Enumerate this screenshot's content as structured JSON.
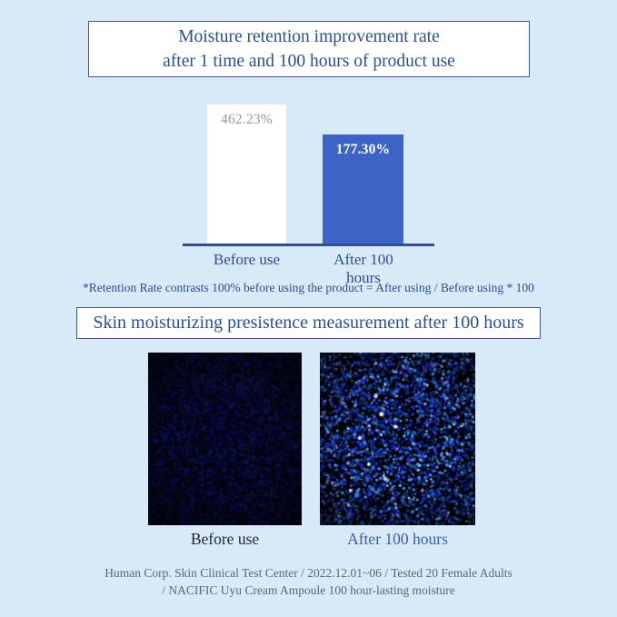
{
  "colors": {
    "background": "#d8e9f8",
    "accent_navy": "#2d4e8f",
    "box_border": "#44598f",
    "bar_before_fill": "#ffffff",
    "bar_after_fill": "#3d63c6",
    "bar_before_value_text": "#9b9b9b",
    "bar_after_value_text": "#ffffff",
    "after_label_blue": "#3a5fad",
    "footer_gray": "#5d6774"
  },
  "header": {
    "title_line1": "Moisture retention improvement rate",
    "title_line2": "after 1 time and 100 hours of product use"
  },
  "chart": {
    "bars": [
      {
        "label": "Before use",
        "value": "462.23%"
      },
      {
        "label": "After 100 hours",
        "value": "177.30%"
      }
    ],
    "footnote": "*Retention Rate contrasts 100% before using the product = After using / Before using * 100"
  },
  "chart_data": {
    "type": "bar",
    "title": "Moisture retention improvement rate after 1 time and 100 hours of product use",
    "categories": [
      "Before use",
      "After 100 hours"
    ],
    "values": [
      462.23,
      177.3
    ],
    "value_labels": [
      "462.23%",
      "177.30%"
    ],
    "bar_colors": [
      "#ffffff",
      "#3d63c6"
    ],
    "xlabel": "",
    "ylabel": "",
    "grid": false,
    "legend": false,
    "axis_color": "#2d4e8f",
    "note": "*Retention Rate contrasts 100% before using the product = After using / Before using * 100",
    "bars_drawn_to_scale": false
  },
  "section2": {
    "title": "Skin moisturizing presistence measurement after 100 hours"
  },
  "micrographs": {
    "before_label": "Before use",
    "after_label": "After 100 hours"
  },
  "footer": {
    "line1": "Human Corp. Skin Clinical Test Center / 2022.12.01~06 / Tested 20 Female Adults",
    "line2": "/ NACIFIC Uyu Cream Ampoule 100 hour-lasting moisture"
  }
}
